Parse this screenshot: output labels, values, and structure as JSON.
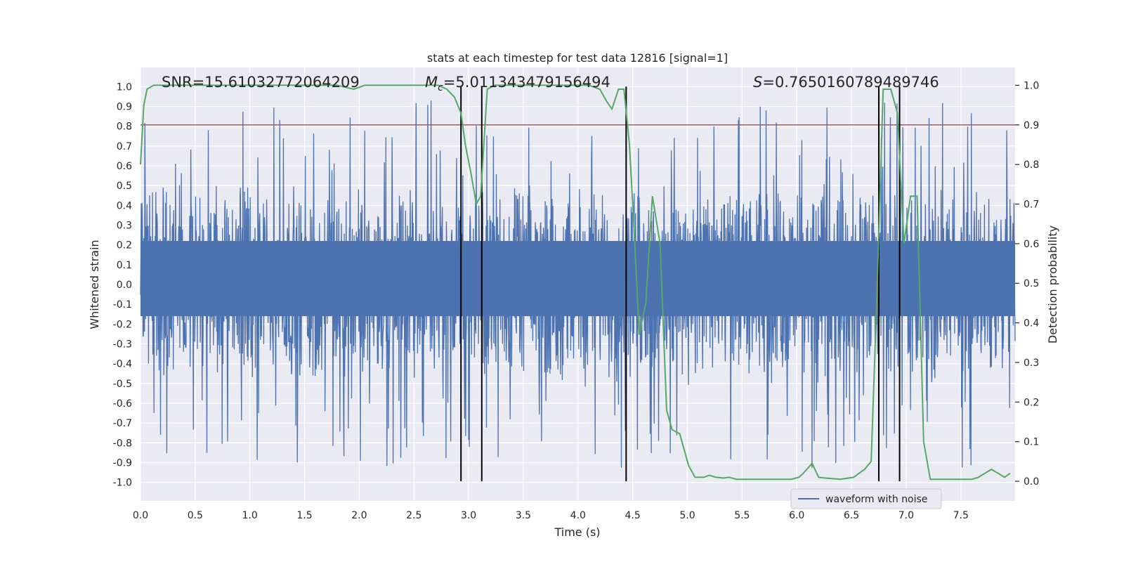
{
  "chart_data": {
    "type": "line",
    "title": "stats at each timestep for test data 12816 [signal=1]",
    "xlabel": "Time (s)",
    "ylabel_left": "Whitened strain",
    "ylabel_right": "Detection probability",
    "xlim": [
      0.0,
      8.0
    ],
    "ylim_left": [
      -1.05,
      1.05
    ],
    "ylim_right": [
      -0.05,
      1.05
    ],
    "x_ticks": [
      "0.0",
      "0.5",
      "1.0",
      "1.5",
      "2.0",
      "2.5",
      "3.0",
      "3.5",
      "4.0",
      "4.5",
      "5.0",
      "5.5",
      "6.0",
      "6.5",
      "7.0",
      "7.5"
    ],
    "y_left_ticks": [
      "1.0",
      "0.9",
      "0.8",
      "0.7",
      "0.6",
      "0.5",
      "0.4",
      "0.3",
      "0.2",
      "0.1",
      "0.0",
      "-0.1",
      "-0.2",
      "-0.3",
      "-0.4",
      "-0.5",
      "-0.6",
      "-0.7",
      "-0.8",
      "-0.9",
      "-1.0"
    ],
    "y_right_ticks": [
      "1.0",
      "0.9",
      "0.8",
      "0.7",
      "0.6",
      "0.5",
      "0.4",
      "0.3",
      "0.2",
      "0.1",
      "0.0"
    ],
    "annotations": {
      "snr": "SNR=15.61032772064209",
      "mc_symbol": "M",
      "mc_sub": "c",
      "mc_value": "=5.011343479156494",
      "s_symbol": "S",
      "s_value": "=0.7650160789489746"
    },
    "threshold": {
      "value": 0.9,
      "axis": "right",
      "color": "#c44e52"
    },
    "detection_lines_x": [
      2.93,
      3.12,
      4.44,
      6.75,
      6.94
    ],
    "waveform": {
      "name": "waveform with noise",
      "color": "#4c72b0",
      "typical_envelope": [
        -0.4,
        0.4
      ],
      "peak_max": 1.0,
      "peak_min": -0.95
    },
    "detection_probability": {
      "color": "#55a868",
      "x": [
        0.0,
        0.03,
        0.06,
        0.12,
        0.3,
        0.6,
        0.9,
        1.2,
        1.5,
        1.8,
        1.95,
        2.05,
        2.2,
        2.4,
        2.6,
        2.72,
        2.8,
        2.87,
        2.93,
        2.97,
        3.02,
        3.07,
        3.11,
        3.17,
        3.24,
        3.3,
        3.5,
        3.8,
        4.0,
        4.1,
        4.2,
        4.26,
        4.31,
        4.37,
        4.42,
        4.47,
        4.51,
        4.56,
        4.62,
        4.68,
        4.75,
        4.81,
        4.86,
        4.93,
        5.01,
        5.07,
        5.15,
        5.2,
        5.26,
        5.33,
        5.38,
        5.45,
        5.6,
        5.8,
        5.95,
        6.02,
        6.06,
        6.14,
        6.2,
        6.26,
        6.4,
        6.52,
        6.57,
        6.62,
        6.68,
        6.73,
        6.79,
        6.86,
        6.92,
        6.98,
        7.04,
        7.1,
        7.16,
        7.22,
        7.28,
        7.35,
        7.5,
        7.6,
        7.66,
        7.72,
        7.78,
        7.84,
        7.9,
        7.95
      ],
      "y": [
        0.8,
        0.95,
        0.99,
        1.0,
        1.0,
        1.0,
        1.0,
        1.0,
        1.0,
        1.0,
        0.99,
        1.0,
        1.0,
        1.0,
        1.0,
        1.0,
        0.99,
        0.97,
        0.93,
        0.85,
        0.78,
        0.7,
        0.72,
        0.99,
        1.0,
        1.0,
        1.0,
        1.0,
        1.0,
        1.0,
        0.99,
        0.96,
        0.94,
        0.99,
        0.99,
        0.85,
        0.65,
        0.37,
        0.45,
        0.72,
        0.6,
        0.18,
        0.13,
        0.12,
        0.04,
        0.01,
        0.01,
        0.015,
        0.01,
        0.008,
        0.01,
        0.005,
        0.005,
        0.005,
        0.005,
        0.01,
        0.02,
        0.045,
        0.01,
        0.008,
        0.005,
        0.01,
        0.02,
        0.03,
        0.05,
        0.45,
        0.99,
        0.99,
        0.93,
        0.6,
        0.72,
        0.72,
        0.1,
        0.005,
        0.005,
        0.005,
        0.005,
        0.005,
        0.01,
        0.02,
        0.03,
        0.02,
        0.01,
        0.02
      ]
    },
    "legend": {
      "label": "waveform with noise",
      "placement": "lower-right"
    }
  }
}
